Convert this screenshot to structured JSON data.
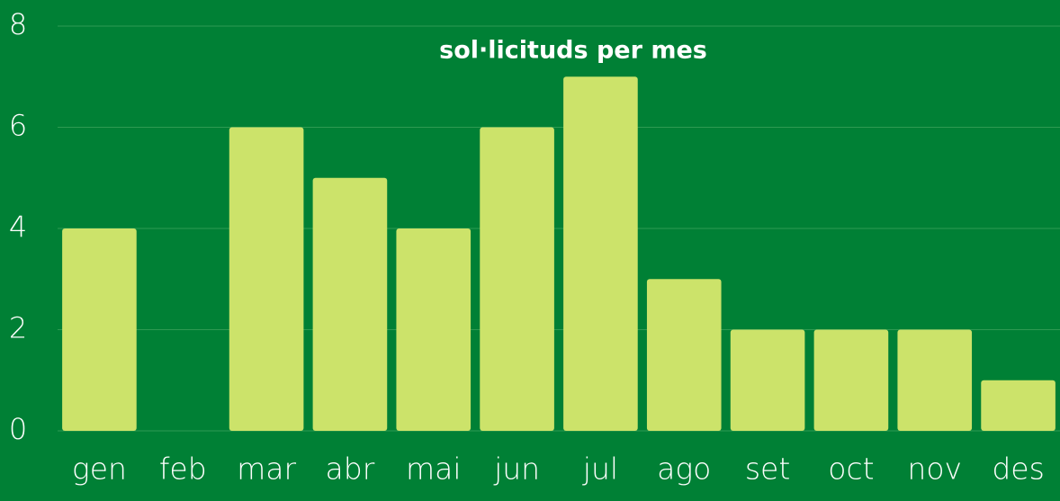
{
  "chart_data": {
    "type": "bar",
    "title": "sol·licituds per mes",
    "categories": [
      "gen",
      "feb",
      "mar",
      "abr",
      "mai",
      "jun",
      "jul",
      "ago",
      "set",
      "oct",
      "nov",
      "des"
    ],
    "values": [
      4,
      0,
      6,
      5,
      4,
      6,
      7,
      3,
      2,
      2,
      2,
      1
    ],
    "color": "#cce36a",
    "ylim": [
      0,
      8
    ],
    "yticks": [
      0,
      2,
      4,
      6,
      8
    ],
    "grid": true
  }
}
